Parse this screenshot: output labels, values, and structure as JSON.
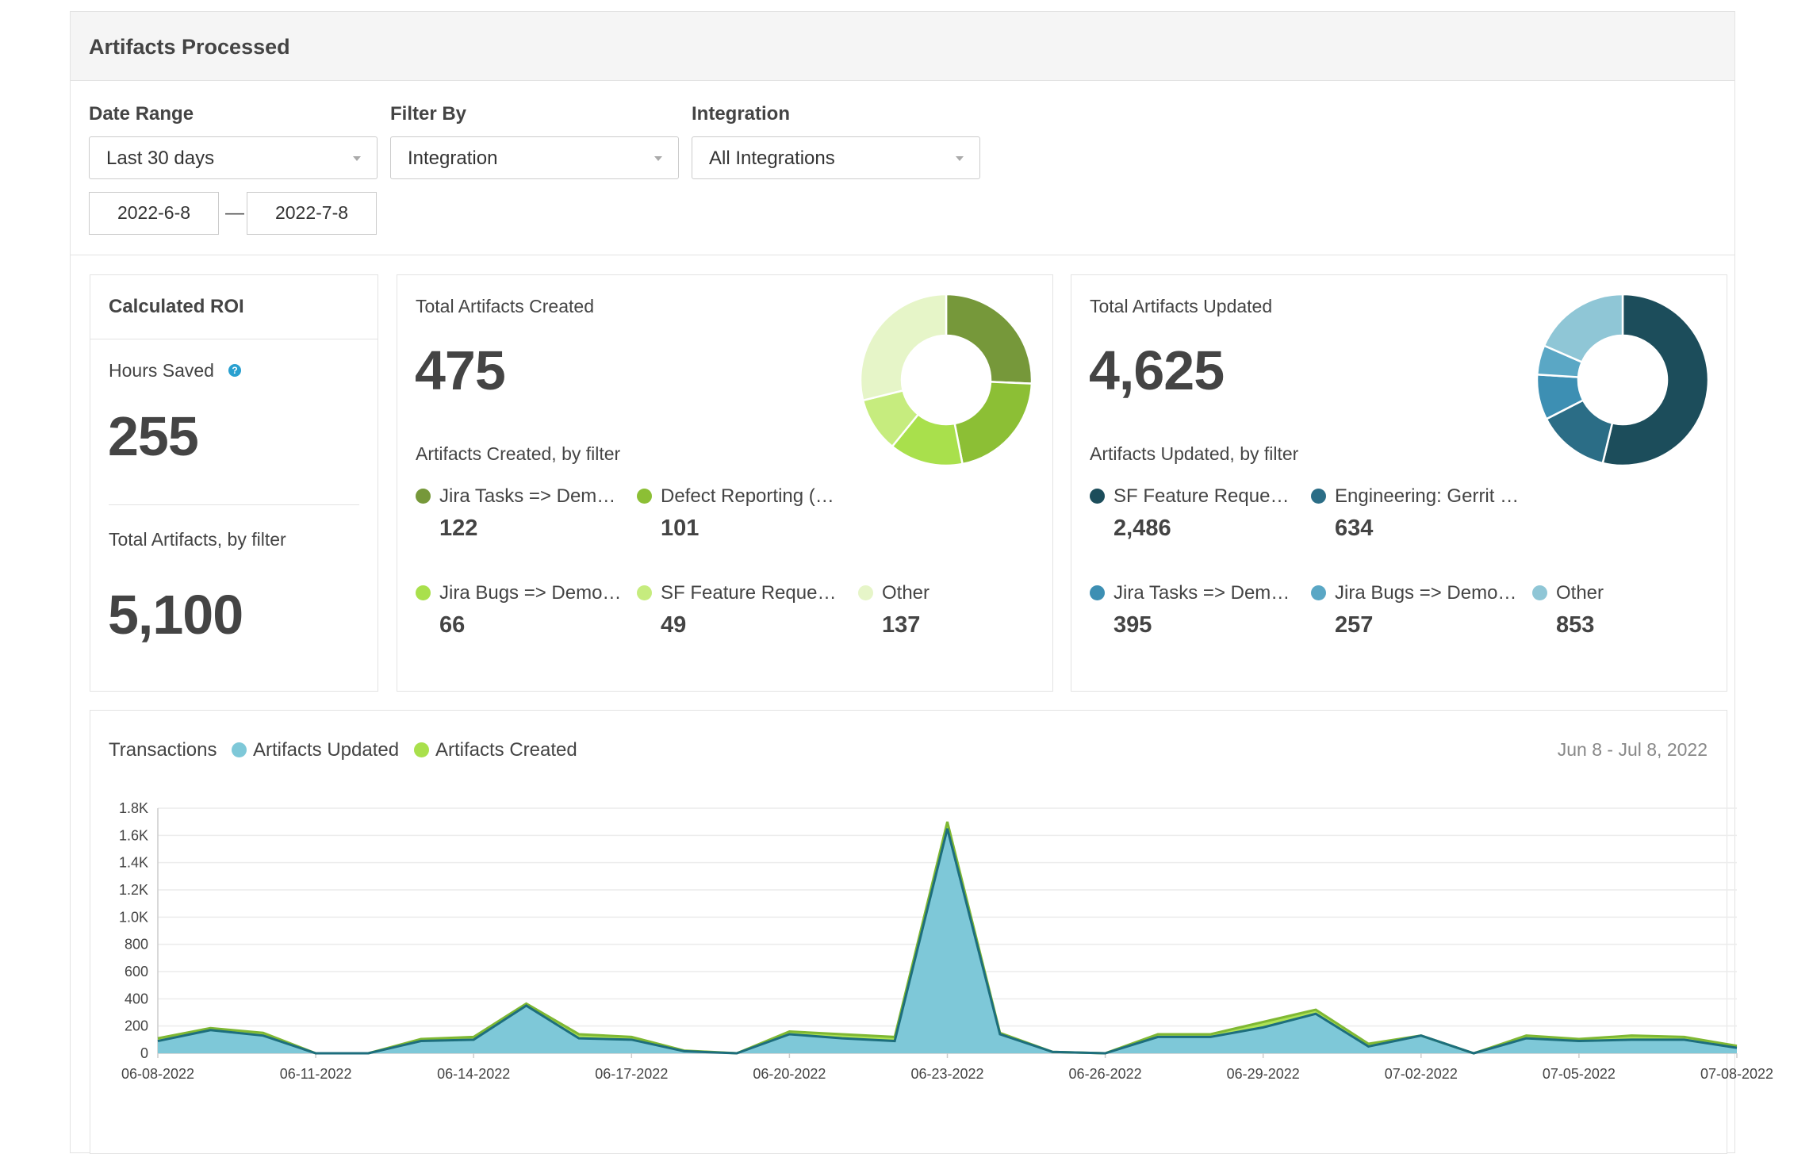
{
  "panel": {
    "title": "Artifacts Processed"
  },
  "filters": {
    "date_range": {
      "label": "Date Range",
      "value": "Last 30 days"
    },
    "filter_by": {
      "label": "Filter By",
      "value": "Integration"
    },
    "integration": {
      "label": "Integration",
      "value": "All Integrations"
    },
    "start_date": "2022-6-8",
    "separator": "—",
    "end_date": "2022-7-8"
  },
  "roi": {
    "title": "Calculated ROI",
    "hours_label": "Hours Saved",
    "help_icon": "?",
    "hours_value": "255",
    "total_label": "Total Artifacts, by filter",
    "total_value": "5,100"
  },
  "created": {
    "title": "Total Artifacts Created",
    "value": "475",
    "subtitle": "Artifacts Created, by filter",
    "items": [
      {
        "label": "Jira Tasks => Dem…",
        "value": "122",
        "color": "#76983a"
      },
      {
        "label": "Defect Reporting (…",
        "value": "101",
        "color": "#8cbf35"
      },
      {
        "label": "Jira Bugs => Demo…",
        "value": "66",
        "color": "#a9e04c"
      },
      {
        "label": "SF Feature Reque…",
        "value": "49",
        "color": "#c6ec7e"
      },
      {
        "label": "Other",
        "value": "137",
        "color": "#e6f5c8"
      }
    ]
  },
  "updated": {
    "title": "Total Artifacts Updated",
    "value": "4,625",
    "subtitle": "Artifacts Updated, by filter",
    "items": [
      {
        "label": "SF Feature Reque…",
        "value": "2,486",
        "color": "#1c4d5b"
      },
      {
        "label": "Engineering: Gerrit …",
        "value": "634",
        "color": "#2b6d86"
      },
      {
        "label": "Jira Tasks => Dem…",
        "value": "395",
        "color": "#3d8fb3"
      },
      {
        "label": "Jira Bugs => Demo…",
        "value": "257",
        "color": "#5aa7c5"
      },
      {
        "label": "Other",
        "value": "853",
        "color": "#8fc6d6"
      }
    ]
  },
  "transactions": {
    "title": "Transactions",
    "date_range": "Jun 8 - Jul 8, 2022"
  },
  "chart_data": {
    "type": "area",
    "x": [
      "06-08-2022",
      "06-09-2022",
      "06-10-2022",
      "06-11-2022",
      "06-12-2022",
      "06-13-2022",
      "06-14-2022",
      "06-15-2022",
      "06-16-2022",
      "06-17-2022",
      "06-18-2022",
      "06-19-2022",
      "06-20-2022",
      "06-21-2022",
      "06-22-2022",
      "06-23-2022",
      "06-24-2022",
      "06-25-2022",
      "06-26-2022",
      "06-27-2022",
      "06-28-2022",
      "06-29-2022",
      "06-30-2022",
      "07-01-2022",
      "07-02-2022",
      "07-03-2022",
      "07-04-2022",
      "07-05-2022",
      "07-06-2022",
      "07-07-2022",
      "07-08-2022"
    ],
    "x_tick_labels": [
      "06-08-2022",
      "06-11-2022",
      "06-14-2022",
      "06-17-2022",
      "06-20-2022",
      "06-23-2022",
      "06-26-2022",
      "06-29-2022",
      "07-02-2022",
      "07-05-2022",
      "07-08-2022"
    ],
    "series": [
      {
        "name": "Artifacts Updated",
        "color": "#7ec8d8",
        "values": [
          90,
          170,
          130,
          0,
          0,
          90,
          100,
          350,
          110,
          100,
          15,
          0,
          140,
          110,
          90,
          1650,
          140,
          10,
          0,
          120,
          120,
          190,
          290,
          50,
          130,
          0,
          110,
          90,
          100,
          100,
          40
        ]
      },
      {
        "name": "Artifacts Created",
        "color": "#a9e04c",
        "values": [
          20,
          15,
          20,
          0,
          0,
          15,
          20,
          15,
          30,
          20,
          5,
          0,
          20,
          30,
          30,
          50,
          10,
          0,
          0,
          20,
          20,
          40,
          30,
          20,
          0,
          0,
          20,
          15,
          30,
          20,
          15
        ]
      }
    ],
    "y_ticks": [
      "0",
      "200",
      "400",
      "600",
      "800",
      "1.0K",
      "1.2K",
      "1.4K",
      "1.6K",
      "1.8K"
    ],
    "ylim": [
      0,
      1800
    ],
    "grid": true,
    "legend_position": "top-left"
  }
}
